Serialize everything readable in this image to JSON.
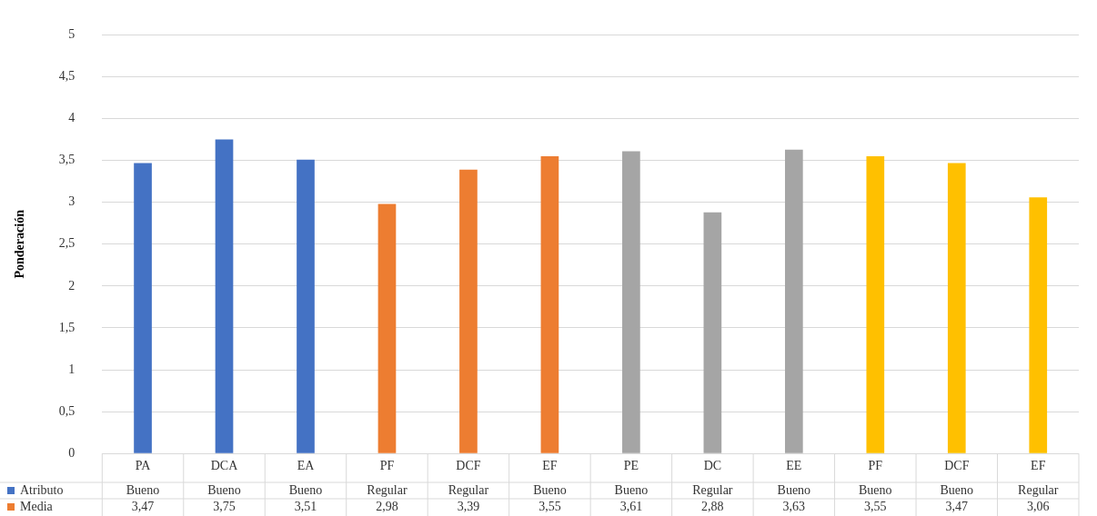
{
  "chart_data": {
    "type": "bar",
    "ylabel": "Ponderación",
    "categories": [
      "PA",
      "DCA",
      "EA",
      "PF",
      "DCF",
      "EF",
      "PE",
      "DC",
      "EE",
      "PF",
      "DCF",
      "EF"
    ],
    "series": [
      {
        "name": "Media",
        "color": "#ed7d31",
        "values": [
          3.47,
          3.75,
          3.51,
          2.98,
          3.39,
          3.55,
          3.61,
          2.88,
          3.63,
          3.55,
          3.47,
          3.06
        ],
        "colors": [
          "#4472c4",
          "#4472c4",
          "#4472c4",
          "#ed7d31",
          "#ed7d31",
          "#ed7d31",
          "#a5a5a5",
          "#a5a5a5",
          "#a5a5a5",
          "#ffc000",
          "#ffc000",
          "#ffc000"
        ],
        "value_labels": [
          "3,47",
          "3,75",
          "3,51",
          "2,98",
          "3,39",
          "3,55",
          "3,61",
          "2,88",
          "3,63",
          "3,55",
          "3,47",
          "3,06"
        ]
      }
    ],
    "annotations": [
      "Atributo",
      "Bueno",
      "Bueno",
      "Bueno",
      "Regular",
      "Regular",
      "Bueno",
      "Bueno",
      "Regular",
      "Bueno",
      "Bueno",
      "Bueno",
      "Regular"
    ],
    "ylim": [
      0,
      5
    ],
    "yticks": [
      0,
      {
        "value": 0.5,
        "label": "0,5"
      },
      1,
      {
        "value": 1.5,
        "label": "1,5"
      },
      2,
      {
        "value": 2.5,
        "label": "2,5"
      },
      3,
      {
        "value": 3.5,
        "label": "3,5"
      },
      4,
      {
        "value": 4.5,
        "label": "4,5"
      },
      5
    ],
    "grid": "y",
    "legend": "bottom left"
  }
}
